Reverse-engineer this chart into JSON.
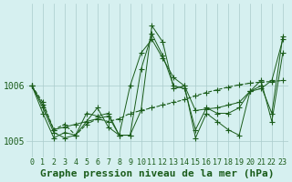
{
  "title": "Graphe pression niveau de la mer (hPa)",
  "background_color": "#d6f0f0",
  "line_color": "#1a5c1a",
  "grid_color": "#aacccc",
  "hours": [
    0,
    1,
    2,
    3,
    4,
    5,
    6,
    7,
    8,
    9,
    10,
    11,
    12,
    13,
    14,
    15,
    16,
    17,
    18,
    19,
    20,
    21,
    22,
    23
  ],
  "series": [
    [
      1006.0,
      1005.7,
      1005.2,
      1005.3,
      1005.1,
      1005.3,
      1005.4,
      1005.35,
      1005.4,
      1005.5,
      1005.55,
      1005.6,
      1005.65,
      1005.7,
      1005.75,
      1005.82,
      1005.88,
      1005.93,
      1005.98,
      1006.02,
      1006.05,
      1006.07,
      1006.08,
      1006.1
    ],
    [
      1006.0,
      1005.5,
      1005.05,
      1005.15,
      1005.1,
      1005.35,
      1005.6,
      1005.25,
      1005.1,
      1006.0,
      1006.6,
      1006.85,
      1006.5,
      1006.15,
      1006.0,
      1005.55,
      1005.58,
      1005.6,
      1005.65,
      1005.7,
      1005.9,
      1006.0,
      1005.5,
      1006.9
    ],
    [
      1006.0,
      1005.6,
      1005.15,
      1005.05,
      1005.1,
      1005.5,
      1005.45,
      1005.5,
      1005.1,
      1005.1,
      1006.3,
      1006.95,
      1006.55,
      1006.0,
      1005.95,
      1005.2,
      1005.6,
      1005.5,
      1005.5,
      1005.6,
      1005.9,
      1005.95,
      1006.1,
      1006.85
    ],
    [
      1006.0,
      1005.65,
      1005.2,
      1005.25,
      1005.3,
      1005.35,
      1005.4,
      1005.45,
      1005.1,
      1005.1,
      1005.55,
      1007.1,
      1006.8,
      1005.95,
      1006.0,
      1005.05,
      1005.5,
      1005.35,
      1005.2,
      1005.1,
      1005.9,
      1006.1,
      1005.35,
      1006.6
    ]
  ],
  "linestyles": [
    "--",
    "-",
    "-",
    "-"
  ],
  "linewidths": [
    0.8,
    0.7,
    0.7,
    0.7
  ],
  "ylim": [
    1004.7,
    1007.5
  ],
  "yticks": [
    1005.0,
    1006.0
  ],
  "xlim": [
    -0.5,
    23.5
  ],
  "xticks": [
    0,
    1,
    2,
    3,
    4,
    5,
    6,
    7,
    8,
    9,
    10,
    11,
    12,
    13,
    14,
    15,
    16,
    17,
    18,
    19,
    20,
    21,
    22,
    23
  ],
  "title_fontsize": 8,
  "tick_fontsize": 6
}
